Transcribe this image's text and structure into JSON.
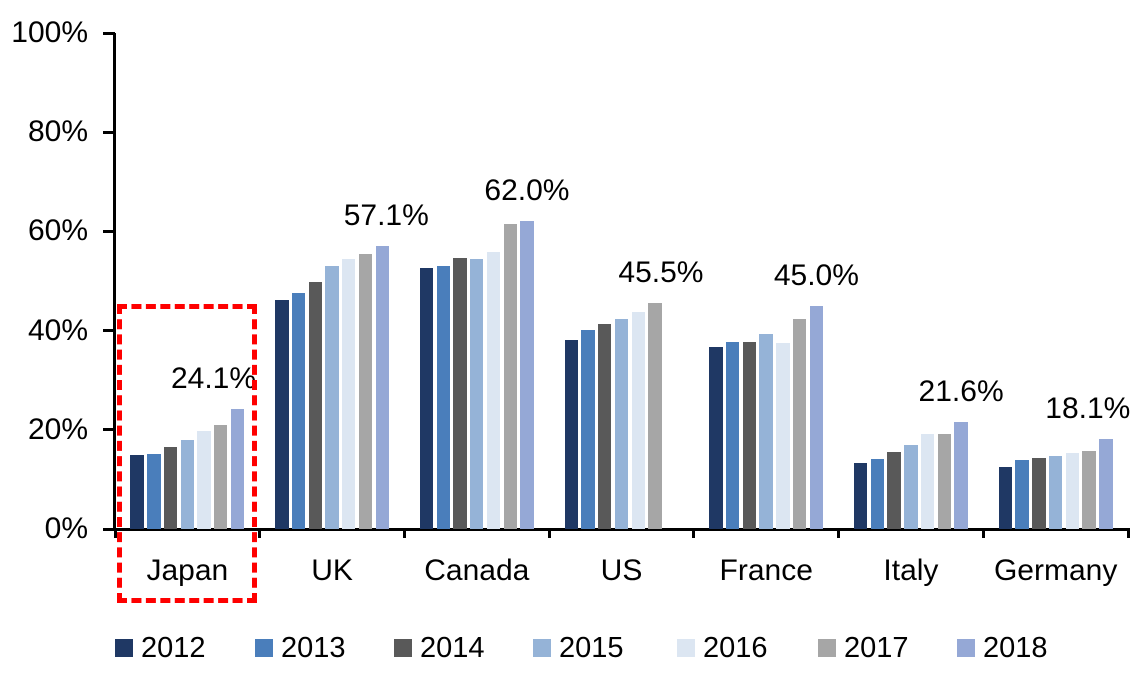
{
  "chart_data": {
    "type": "bar",
    "title": "",
    "categories": [
      "Japan",
      "UK",
      "Canada",
      "US",
      "France",
      "Italy",
      "Germany"
    ],
    "series": [
      {
        "name": "2012",
        "color": "#1F3864",
        "values": [
          14.9,
          46.1,
          52.6,
          38.2,
          36.6,
          13.3,
          12.5
        ]
      },
      {
        "name": "2013",
        "color": "#4A7EBB",
        "values": [
          15.2,
          47.6,
          53.1,
          40.1,
          37.7,
          14.2,
          14.0
        ]
      },
      {
        "name": "2014",
        "color": "#595959",
        "values": [
          16.6,
          49.7,
          54.6,
          41.4,
          37.8,
          15.6,
          14.3
        ]
      },
      {
        "name": "2015",
        "color": "#95B3D7",
        "values": [
          17.9,
          53.0,
          54.4,
          42.4,
          39.4,
          17.0,
          14.8
        ]
      },
      {
        "name": "2016",
        "color": "#DCE6F2",
        "values": [
          19.7,
          54.5,
          55.8,
          43.8,
          37.5,
          19.1,
          15.4
        ]
      },
      {
        "name": "2017",
        "color": "#A6A6A6",
        "values": [
          21.0,
          55.5,
          61.5,
          45.5,
          42.3,
          19.2,
          15.8
        ]
      },
      {
        "name": "2018",
        "color": "#95A8D6",
        "values": [
          24.1,
          57.1,
          62.0,
          null,
          45.0,
          21.6,
          18.1
        ]
      }
    ],
    "data_labels": [
      {
        "category": "Japan",
        "text": "24.1%",
        "series": "2018"
      },
      {
        "category": "UK",
        "text": "57.1%",
        "series": "2018"
      },
      {
        "category": "Canada",
        "text": "62.0%",
        "series": "2018"
      },
      {
        "category": "US",
        "text": "45.5%",
        "series": "2017"
      },
      {
        "category": "France",
        "text": "45.0%",
        "series": "2018"
      },
      {
        "category": "Italy",
        "text": "21.6%",
        "series": "2018"
      },
      {
        "category": "Germany",
        "text": "18.1%",
        "series": "2018"
      }
    ],
    "y_axis": {
      "min": 0,
      "max": 100,
      "ticks": [
        "100%",
        "80%",
        "60%",
        "40%",
        "20%",
        "0%"
      ]
    },
    "legend": {
      "position": "bottom",
      "entries": [
        "2012",
        "2013",
        "2014",
        "2015",
        "2016",
        "2017",
        "2018"
      ]
    },
    "annotations": {
      "highlight_box": {
        "category": "Japan",
        "color": "#FE0000",
        "style": "dashed"
      }
    },
    "grid": false
  }
}
